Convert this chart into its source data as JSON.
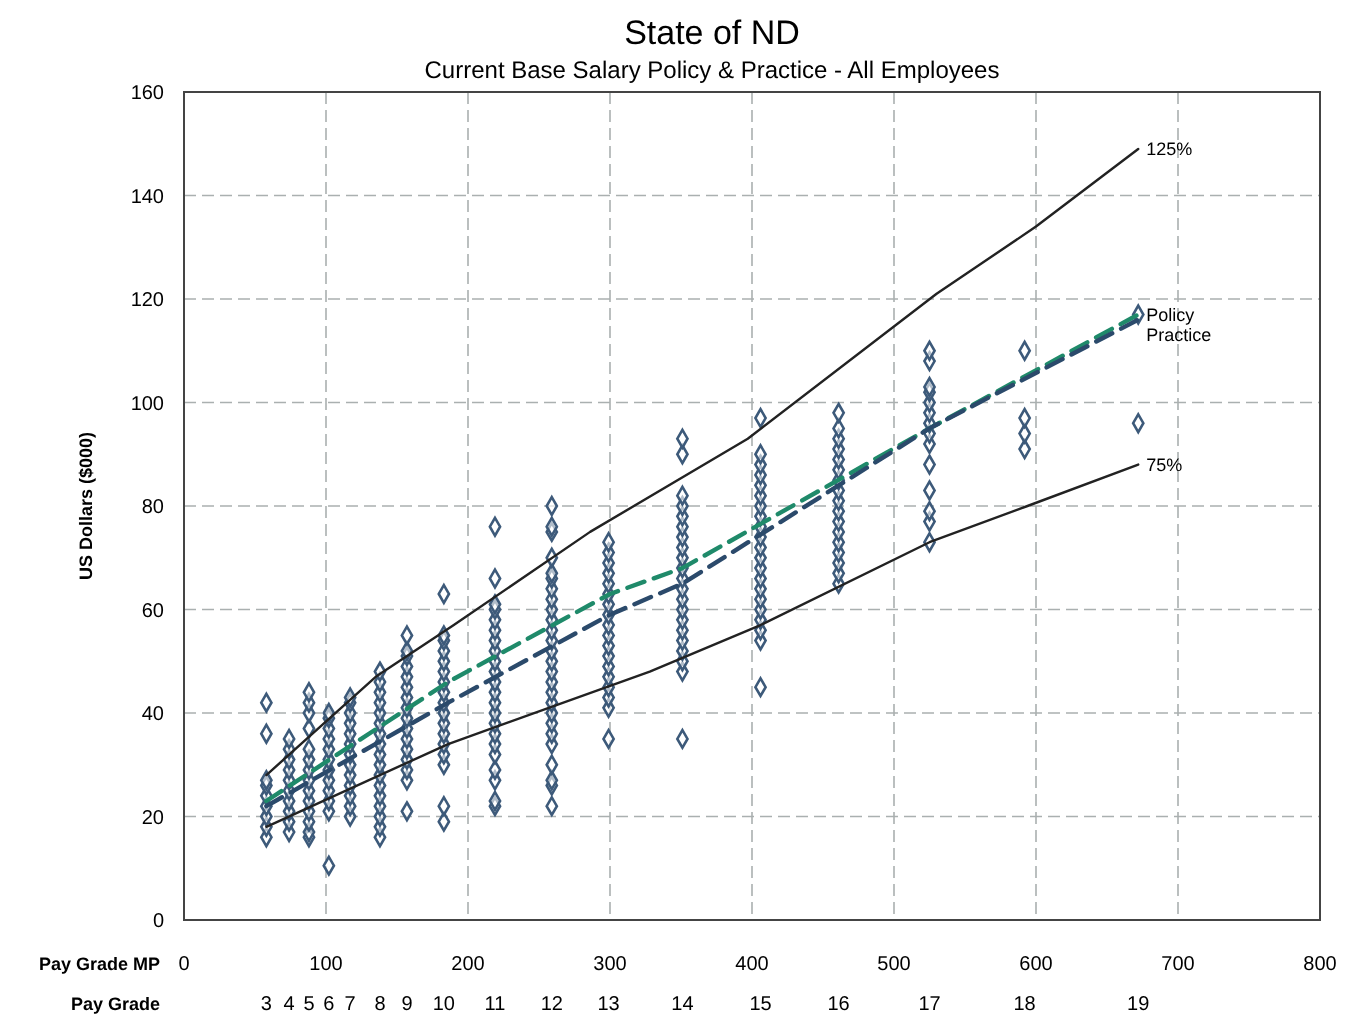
{
  "chart_data": {
    "type": "scatter",
    "title": "State of ND",
    "subtitle": "Current Base Salary Policy & Practice - All Employees",
    "xlabel": "Pay Grade MP",
    "ylabel": "US Dollars ($000)",
    "annotations": [
      "Pay Grade",
      "3",
      "4",
      "5",
      "6",
      "7",
      "8",
      "9",
      "10",
      "11",
      "12",
      "13",
      "14",
      "15",
      "16",
      "17",
      "18",
      "19"
    ],
    "xlim": [
      0,
      800
    ],
    "xticks": [
      0,
      100,
      200,
      300,
      400,
      500,
      600,
      700,
      800
    ],
    "ylim": [
      0,
      160
    ],
    "yticks": [
      0,
      20,
      40,
      60,
      80,
      100,
      120,
      140,
      160
    ],
    "grid": true,
    "legend": false,
    "series": [
      {
        "type": "scatter",
        "color": "#3d5a7a",
        "marker": "diamond",
        "x": [
          58,
          58,
          58,
          58,
          58,
          58,
          58,
          58,
          58,
          74,
          74,
          74,
          74,
          74,
          74,
          74,
          74,
          74,
          74,
          88,
          88,
          88,
          88,
          88,
          88,
          88,
          88,
          88,
          88,
          88,
          88,
          88,
          88,
          102,
          102,
          102,
          102,
          102,
          102,
          102,
          102,
          102,
          102,
          102,
          102,
          117,
          117,
          117,
          117,
          117,
          117,
          117,
          117,
          117,
          117,
          117,
          117,
          117,
          138,
          138,
          138,
          138,
          138,
          138,
          138,
          138,
          138,
          138,
          138,
          138,
          138,
          138,
          138,
          138,
          138,
          157,
          157,
          157,
          157,
          157,
          157,
          157,
          157,
          157,
          157,
          157,
          157,
          157,
          157,
          157,
          157,
          183,
          183,
          183,
          183,
          183,
          183,
          183,
          183,
          183,
          183,
          183,
          183,
          183,
          183,
          183,
          183,
          183,
          219,
          219,
          219,
          219,
          219,
          219,
          219,
          219,
          219,
          219,
          219,
          219,
          219,
          219,
          219,
          219,
          219,
          219,
          219,
          219,
          219,
          219,
          259,
          259,
          259,
          259,
          259,
          259,
          259,
          259,
          259,
          259,
          259,
          259,
          259,
          259,
          259,
          259,
          259,
          259,
          259,
          259,
          259,
          259,
          259,
          259,
          259,
          259,
          299,
          299,
          299,
          299,
          299,
          299,
          299,
          299,
          299,
          299,
          299,
          299,
          299,
          299,
          299,
          299,
          299,
          299,
          351,
          351,
          351,
          351,
          351,
          351,
          351,
          351,
          351,
          351,
          351,
          351,
          351,
          351,
          351,
          351,
          351,
          351,
          351,
          351,
          351,
          406,
          406,
          406,
          406,
          406,
          406,
          406,
          406,
          406,
          406,
          406,
          406,
          406,
          406,
          406,
          406,
          406,
          406,
          406,
          406,
          406,
          461,
          461,
          461,
          461,
          461,
          461,
          461,
          461,
          461,
          461,
          461,
          461,
          461,
          461,
          461,
          461,
          461,
          525,
          525,
          525,
          525,
          525,
          525,
          525,
          525,
          525,
          525,
          525,
          525,
          525,
          525,
          592,
          592,
          592,
          592,
          672,
          672
        ],
        "values": [
          16,
          18,
          20,
          22,
          24,
          26,
          27,
          36,
          42,
          17,
          19,
          21,
          23,
          25,
          27,
          29,
          31,
          33,
          35,
          16,
          17,
          19,
          21,
          23,
          25,
          27,
          29,
          31,
          33,
          37,
          40,
          42,
          44,
          10.5,
          21,
          23,
          25,
          27,
          29,
          31,
          33,
          35,
          37,
          39,
          40,
          20,
          22,
          24,
          26,
          28,
          30,
          32,
          34,
          36,
          38,
          40,
          42,
          43,
          16,
          18,
          20,
          22,
          24,
          26,
          28,
          30,
          32,
          34,
          36,
          38,
          40,
          42,
          44,
          46,
          48,
          21,
          27,
          29,
          31,
          33,
          35,
          37,
          39,
          41,
          43,
          45,
          47,
          49,
          51,
          52,
          55,
          19,
          22,
          30,
          32,
          34,
          36,
          38,
          40,
          42,
          44,
          46,
          48,
          50,
          52,
          54,
          55,
          63,
          22,
          23,
          27,
          29,
          32,
          34,
          36,
          38,
          40,
          42,
          44,
          46,
          48,
          50,
          52,
          54,
          56,
          58,
          60,
          61,
          66,
          76,
          22,
          26,
          27,
          30,
          34,
          36,
          38,
          40,
          42,
          44,
          46,
          48,
          50,
          52,
          54,
          56,
          58,
          60,
          62,
          64,
          66,
          67,
          70,
          75,
          76,
          80,
          35,
          41,
          43,
          45,
          47,
          49,
          51,
          53,
          55,
          57,
          59,
          61,
          63,
          65,
          67,
          69,
          71,
          73,
          35,
          48,
          50,
          52,
          54,
          56,
          58,
          60,
          62,
          64,
          66,
          68,
          70,
          72,
          74,
          76,
          78,
          80,
          82,
          90,
          93,
          45,
          54,
          56,
          58,
          60,
          62,
          64,
          66,
          68,
          70,
          72,
          74,
          76,
          78,
          80,
          82,
          84,
          86,
          88,
          90,
          97,
          65,
          67,
          69,
          71,
          73,
          75,
          77,
          79,
          81,
          83,
          85,
          87,
          89,
          91,
          93,
          95,
          98,
          73,
          77,
          79,
          83,
          88,
          92,
          94,
          96,
          98,
          100,
          102,
          103,
          108,
          110,
          91,
          94,
          97,
          110,
          96,
          117
        ]
      },
      {
        "type": "line",
        "name": "125%",
        "color": "#222222",
        "line_style": "solid",
        "marker": "none",
        "x": [
          58,
          135,
          190,
          286,
          397,
          530,
          600,
          672
        ],
        "values": [
          28,
          47,
          57,
          75,
          93,
          121,
          134,
          149
        ]
      },
      {
        "type": "line",
        "name": "Policy",
        "color": "#1f8a6a",
        "line_style": "dashed",
        "marker": "none",
        "x": [
          58,
          186,
          300,
          351,
          525,
          672
        ],
        "values": [
          23,
          46,
          63,
          68,
          95,
          117
        ]
      },
      {
        "type": "line",
        "name": "Practice",
        "color": "#2b4a6b",
        "line_style": "dashed",
        "marker": "none",
        "x": [
          58,
          186,
          300,
          351,
          525,
          672
        ],
        "values": [
          22,
          42,
          59,
          65,
          95,
          116
        ]
      },
      {
        "type": "line",
        "name": "75%",
        "color": "#222222",
        "line_style": "solid",
        "marker": "none",
        "x": [
          58,
          186,
          328,
          406,
          525,
          594,
          672
        ],
        "values": [
          18,
          34,
          48,
          57,
          73,
          80,
          88
        ]
      }
    ]
  }
}
